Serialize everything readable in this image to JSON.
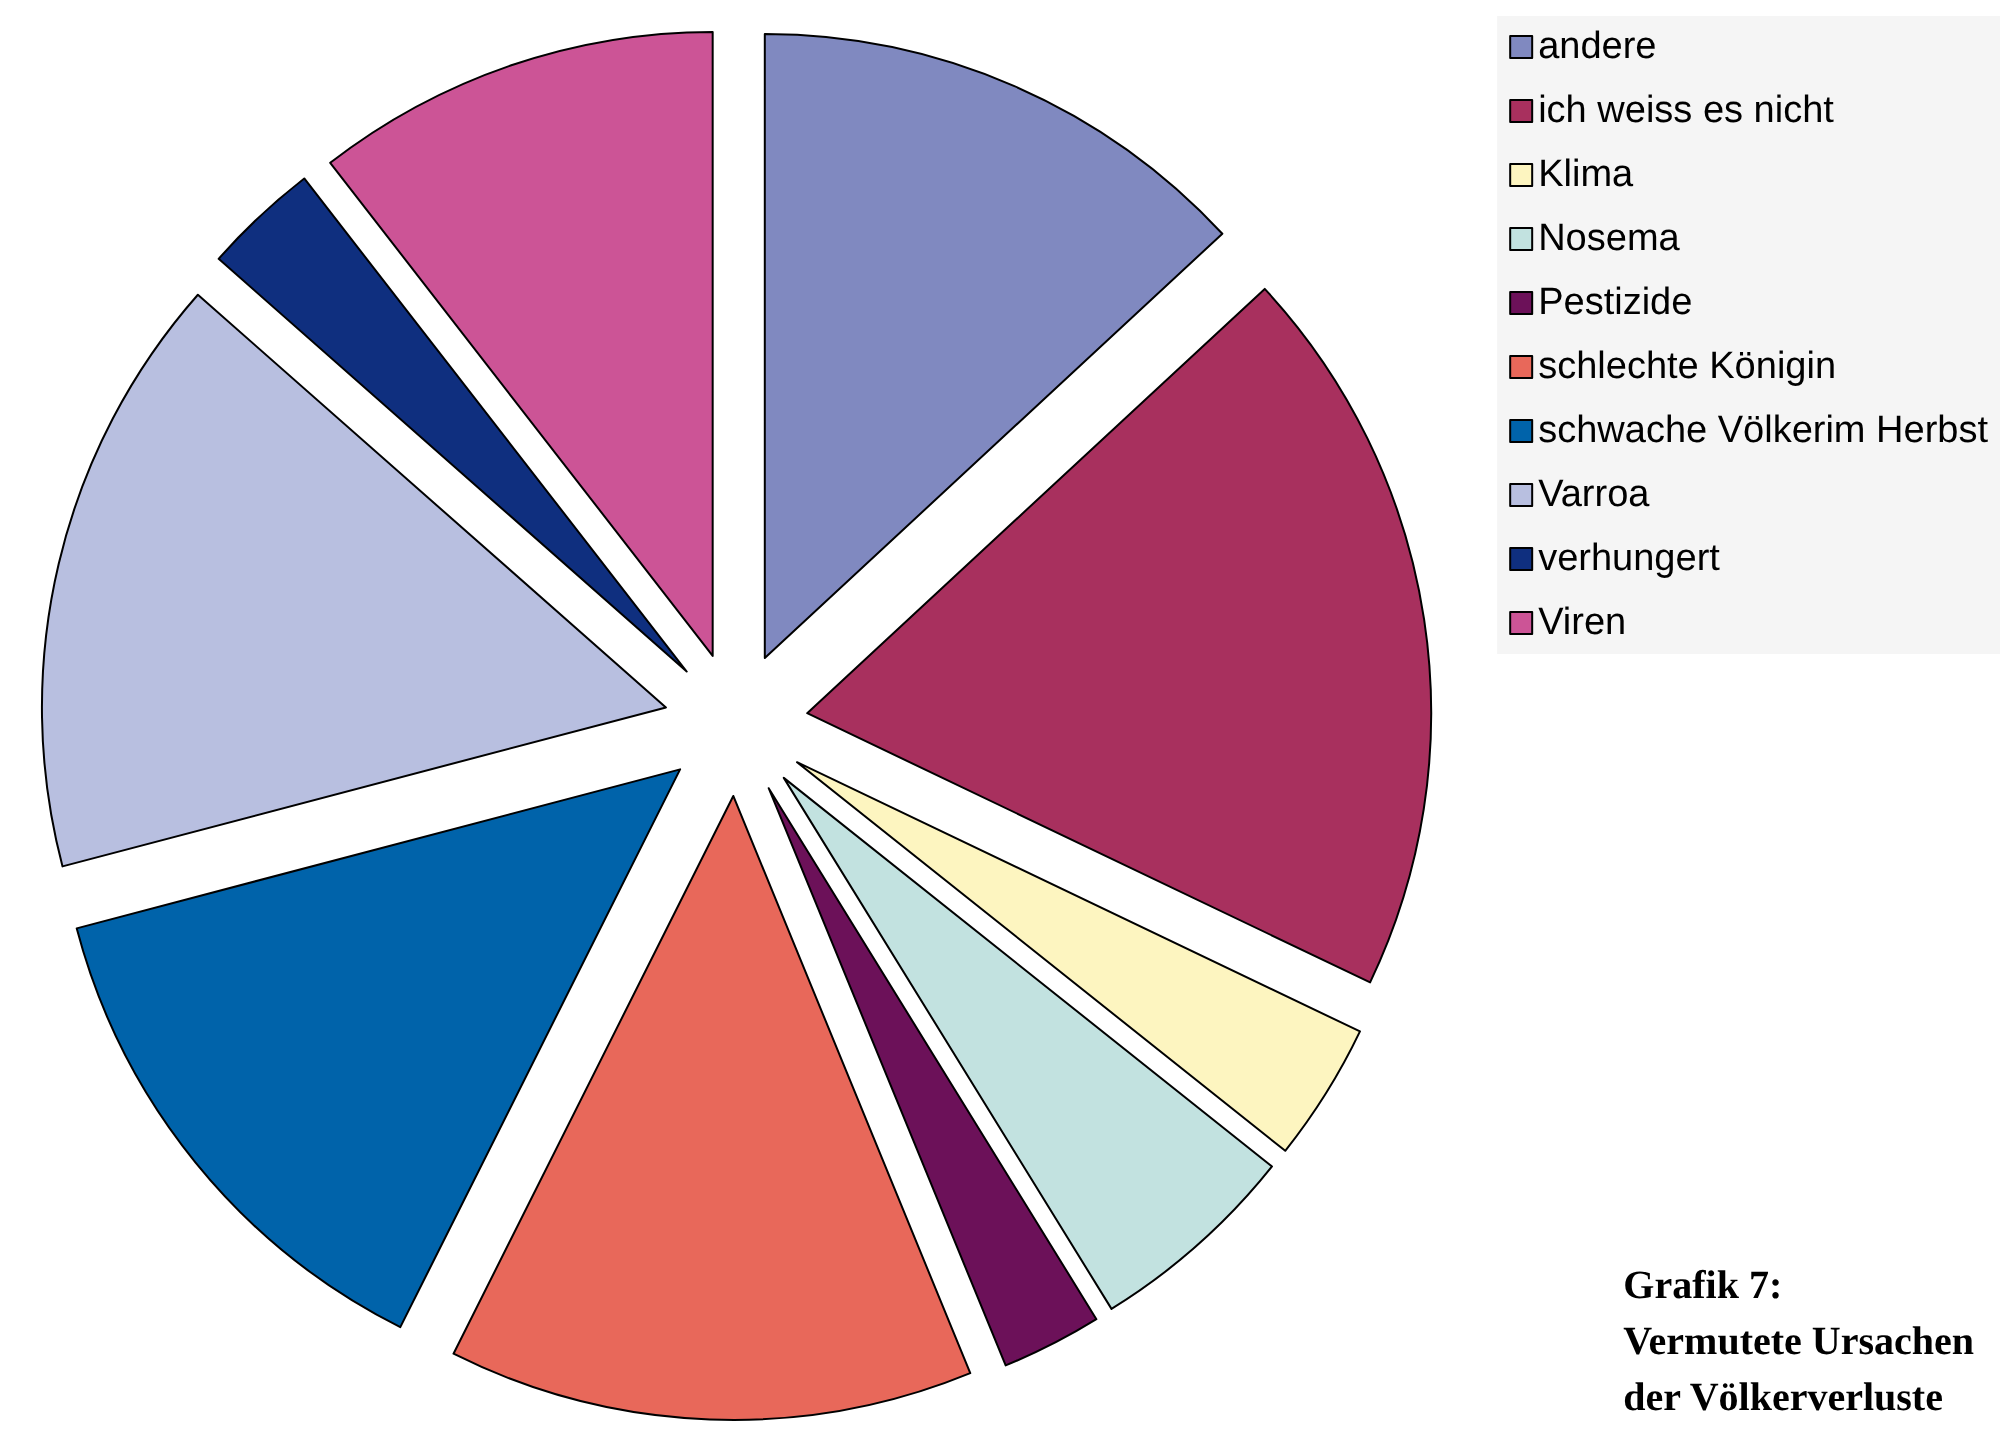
{
  "chart_data": {
    "type": "pie",
    "title": "Grafik 7:\nVermutete Ursachen\nder Völkerverluste",
    "categories": [
      "andere",
      "ich weiss es nicht",
      "Klima",
      "Nosema",
      "Pestizide",
      "schlechte Königin",
      "schwache Völkerim Herbst",
      "Varroa",
      "verhungert",
      "Viren"
    ],
    "values": [
      13.1,
      19.0,
      3.6,
      5.5,
      2.6,
      13.6,
      13.5,
      15.6,
      3.0,
      10.5
    ],
    "colors": [
      "#8089c0",
      "#a8305e",
      "#fdf5c0",
      "#c2e2e0",
      "#6c1159",
      "#e8685a",
      "#0063aa",
      "#b8bfe0",
      "#0f2f7f",
      "#cc5496"
    ],
    "legend": "top right"
  }
}
